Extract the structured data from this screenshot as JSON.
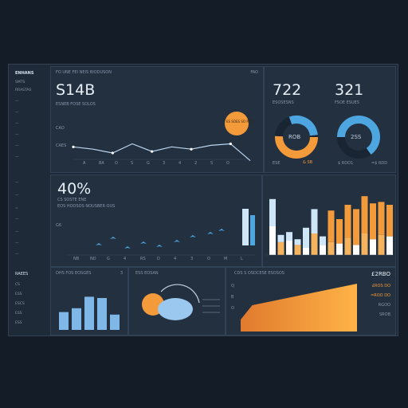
{
  "sidebar": {
    "title": "ENHANS",
    "items": [
      "SMTS",
      "RRASTAS",
      "—",
      "—",
      "—",
      "—",
      "—",
      "—"
    ],
    "items2": [
      "—",
      "—",
      "=",
      "—",
      "—",
      "—",
      "—"
    ],
    "items3": [
      "ESSAIS",
      "OC",
      "ESC",
      "ESOS",
      "ESS"
    ]
  },
  "header": {
    "title": "FO UNE FEI NEIS BIODUSON",
    "right_label": "FAO"
  },
  "main_chart": {
    "value": "S14B",
    "sub": "ESNEB FOSE SOLOS",
    "y_ticks": [
      "CAO",
      "CAES"
    ],
    "x_ticks": [
      "A",
      "BA",
      "O",
      "S",
      "G",
      "3",
      "4",
      "2",
      "S",
      "O"
    ],
    "badge": "ES SOES SO ROS",
    "badge_value": "6"
  },
  "kpi": {
    "left_value": "722",
    "left_sub": "ESOSESNS",
    "right_value": "321",
    "right_sub": "FSOE ESUES",
    "donut1_label": "ROB",
    "donut2_label": "2SS",
    "bottom_left": "ESE",
    "bottom_mid": "& SB",
    "bottom_right": "$ ROO1",
    "bottom_far": "=$ RDD"
  },
  "middle": {
    "value": "40%",
    "sub1": "CS SOSTE ENE",
    "sub2": "EOS HOOSOS NOUSBER OUS",
    "y_label": "G6",
    "x_ticks": [
      "NB",
      "ND",
      "G",
      "4",
      "RS",
      "D",
      "4",
      "3",
      "O",
      "M",
      "L"
    ],
    "x_ticks2": [
      "OS",
      "N",
      "A",
      "S",
      "M",
      "SA",
      "N",
      "SB",
      "SA"
    ]
  },
  "bottom": {
    "left_title": "RAEES",
    "left_items": [
      "CS",
      "ESS",
      "ESCS",
      "ESS",
      "ESS"
    ],
    "bar_title": "DHS FOS EOSGES",
    "bar_value": "3",
    "donut_title": "ESS EOSAN",
    "area_title": "CDS S OSDCESE ESOSOS",
    "area_value": "£2RBO",
    "right_items": [
      "£ROS DO",
      "=ROO DO",
      "RGOO",
      "SROB"
    ]
  },
  "colors": {
    "accent": "#f39a3a",
    "blue": "#4ea6e0",
    "line": "#bcd6ee",
    "bg": "#141c28"
  },
  "chart_data": [
    {
      "type": "line",
      "x": [
        1,
        2,
        3,
        4,
        5,
        6,
        7,
        8,
        9,
        10
      ],
      "values": [
        58,
        55,
        50,
        62,
        52,
        58,
        55,
        60,
        62,
        40
      ],
      "ylim": [
        0,
        100
      ]
    },
    {
      "type": "bar",
      "categories": [
        "1",
        "2",
        "3",
        "4",
        "5",
        "6",
        "7",
        "8",
        "9",
        "10",
        "11",
        "12",
        "13",
        "14",
        "15"
      ],
      "series": [
        {
          "values": [
            38,
            10,
            12,
            8,
            28,
            34,
            12,
            44,
            34,
            46,
            50,
            52,
            50,
            46,
            44
          ]
        },
        {
          "values": [
            40,
            18,
            20,
            14,
            10,
            30,
            14,
            18,
            16,
            24,
            14,
            30,
            22,
            28,
            26
          ]
        }
      ],
      "ylim": [
        0,
        80
      ]
    },
    {
      "type": "bar",
      "categories": [
        "1",
        "2",
        "3",
        "4",
        "5"
      ],
      "values": [
        28,
        34,
        52,
        50,
        24
      ],
      "ylim": [
        0,
        60
      ]
    },
    {
      "type": "area",
      "x": [
        1,
        2,
        3,
        4,
        5,
        6,
        7,
        8,
        9,
        10,
        11
      ],
      "values": [
        10,
        22,
        24,
        26,
        28,
        30,
        32,
        34,
        36,
        38,
        40
      ],
      "ylim": [
        0,
        45
      ]
    }
  ]
}
